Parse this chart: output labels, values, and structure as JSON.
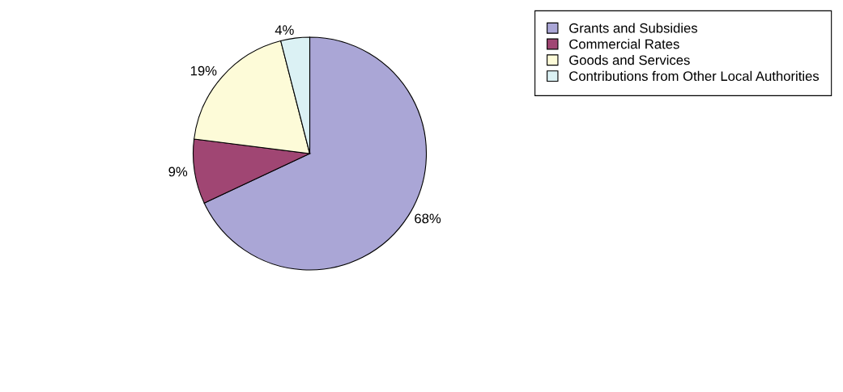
{
  "chart_data": {
    "type": "pie",
    "categories": [
      "Grants and Subsidies",
      "Commercial Rates",
      "Goods and Services",
      "Contributions from Other Local Authorities"
    ],
    "values": [
      68,
      9,
      19,
      4
    ],
    "colors": [
      "#aaa6d6",
      "#a04673",
      "#fdfbd8",
      "#dbf1f4"
    ],
    "value_labels": [
      "68%",
      "9%",
      "19%",
      "4%"
    ],
    "legend": "top right"
  }
}
